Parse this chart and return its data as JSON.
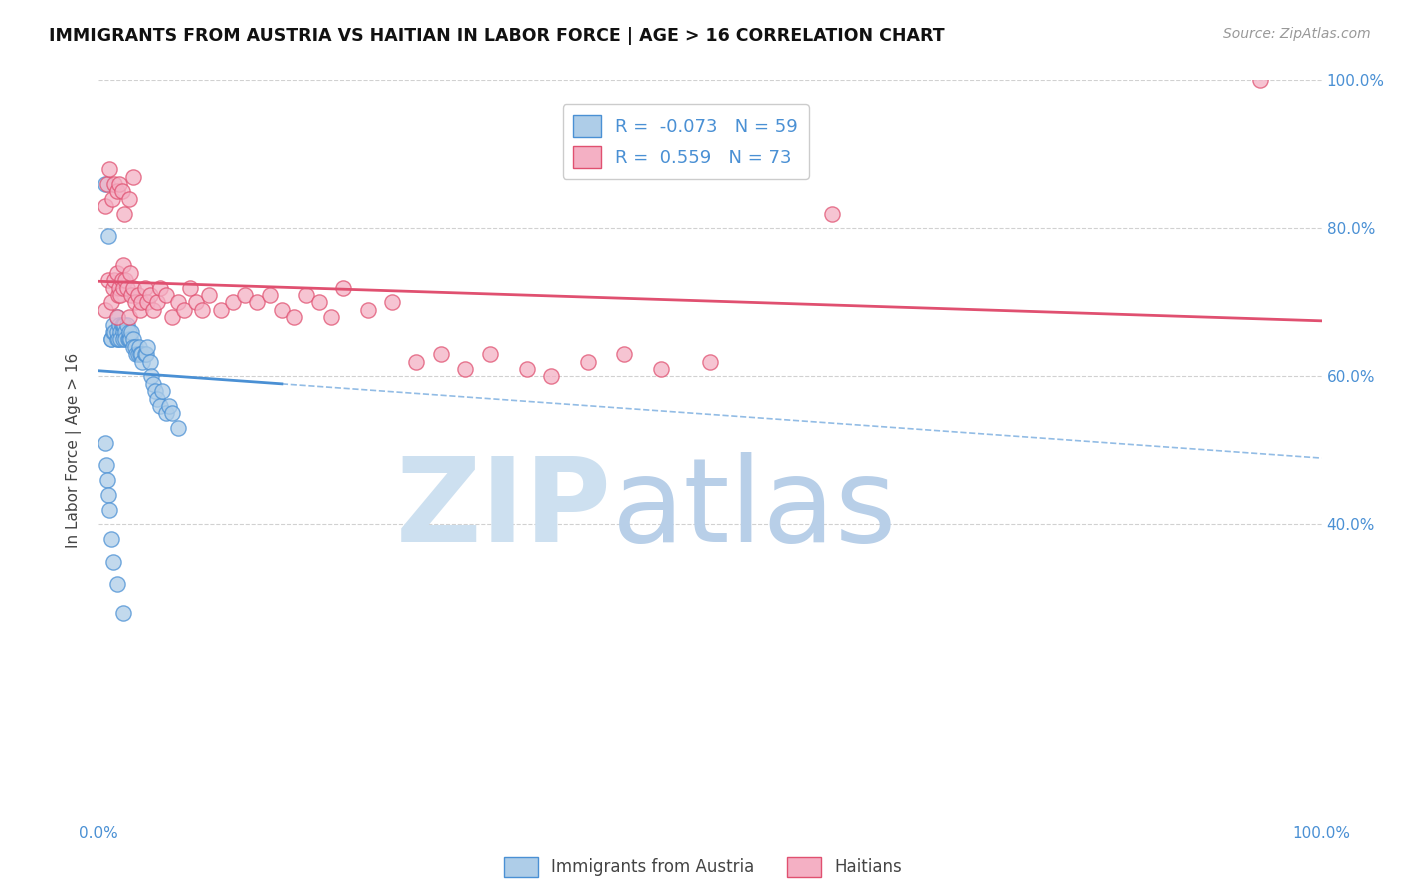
{
  "title": "IMMIGRANTS FROM AUSTRIA VS HAITIAN IN LABOR FORCE | AGE > 16 CORRELATION CHART",
  "source_text": "Source: ZipAtlas.com",
  "ylabel": "In Labor Force | Age > 16",
  "xlim": [
    0.0,
    1.0
  ],
  "ylim": [
    0.0,
    1.0
  ],
  "austria_color": "#aecde8",
  "haiti_color": "#f4b0c4",
  "austria_line_color": "#4a90d4",
  "haiti_line_color": "#e05070",
  "austria_R": -0.073,
  "austria_N": 59,
  "haiti_R": 0.559,
  "haiti_N": 73,
  "background_color": "#ffffff",
  "grid_color": "#cccccc",
  "austria_scatter_x": [
    0.005,
    0.008,
    0.01,
    0.01,
    0.012,
    0.012,
    0.013,
    0.015,
    0.015,
    0.015,
    0.016,
    0.017,
    0.018,
    0.018,
    0.019,
    0.02,
    0.02,
    0.02,
    0.021,
    0.022,
    0.022,
    0.023,
    0.024,
    0.025,
    0.025,
    0.026,
    0.027,
    0.028,
    0.028,
    0.03,
    0.031,
    0.032,
    0.033,
    0.034,
    0.035,
    0.036,
    0.038,
    0.039,
    0.04,
    0.042,
    0.043,
    0.045,
    0.046,
    0.048,
    0.05,
    0.052,
    0.055,
    0.058,
    0.06,
    0.065,
    0.005,
    0.006,
    0.007,
    0.008,
    0.009,
    0.01,
    0.012,
    0.015,
    0.02
  ],
  "austria_scatter_y": [
    0.86,
    0.79,
    0.65,
    0.65,
    0.66,
    0.67,
    0.66,
    0.65,
    0.68,
    0.66,
    0.65,
    0.67,
    0.66,
    0.65,
    0.67,
    0.66,
    0.65,
    0.67,
    0.67,
    0.66,
    0.65,
    0.67,
    0.65,
    0.65,
    0.66,
    0.65,
    0.66,
    0.65,
    0.64,
    0.64,
    0.63,
    0.63,
    0.64,
    0.63,
    0.63,
    0.62,
    0.63,
    0.63,
    0.64,
    0.62,
    0.6,
    0.59,
    0.58,
    0.57,
    0.56,
    0.58,
    0.55,
    0.56,
    0.55,
    0.53,
    0.51,
    0.48,
    0.46,
    0.44,
    0.42,
    0.38,
    0.35,
    0.32,
    0.28
  ],
  "haiti_scatter_x": [
    0.005,
    0.008,
    0.01,
    0.012,
    0.013,
    0.015,
    0.015,
    0.016,
    0.017,
    0.018,
    0.019,
    0.02,
    0.02,
    0.022,
    0.023,
    0.025,
    0.026,
    0.027,
    0.028,
    0.03,
    0.032,
    0.034,
    0.035,
    0.038,
    0.04,
    0.042,
    0.045,
    0.048,
    0.05,
    0.055,
    0.06,
    0.065,
    0.07,
    0.075,
    0.08,
    0.085,
    0.09,
    0.1,
    0.11,
    0.12,
    0.13,
    0.14,
    0.15,
    0.16,
    0.17,
    0.18,
    0.19,
    0.2,
    0.22,
    0.24,
    0.26,
    0.28,
    0.3,
    0.32,
    0.35,
    0.37,
    0.4,
    0.43,
    0.46,
    0.5,
    0.005,
    0.007,
    0.009,
    0.011,
    0.013,
    0.015,
    0.017,
    0.019,
    0.021,
    0.025,
    0.028,
    0.6,
    0.95
  ],
  "haiti_scatter_y": [
    0.69,
    0.73,
    0.7,
    0.72,
    0.73,
    0.74,
    0.68,
    0.71,
    0.72,
    0.71,
    0.73,
    0.75,
    0.72,
    0.73,
    0.72,
    0.68,
    0.74,
    0.71,
    0.72,
    0.7,
    0.71,
    0.69,
    0.7,
    0.72,
    0.7,
    0.71,
    0.69,
    0.7,
    0.72,
    0.71,
    0.68,
    0.7,
    0.69,
    0.72,
    0.7,
    0.69,
    0.71,
    0.69,
    0.7,
    0.71,
    0.7,
    0.71,
    0.69,
    0.68,
    0.71,
    0.7,
    0.68,
    0.72,
    0.69,
    0.7,
    0.62,
    0.63,
    0.61,
    0.63,
    0.61,
    0.6,
    0.62,
    0.63,
    0.61,
    0.62,
    0.83,
    0.86,
    0.88,
    0.84,
    0.86,
    0.85,
    0.86,
    0.85,
    0.82,
    0.84,
    0.87,
    0.82,
    1.0
  ],
  "right_ytick_positions": [
    0.4,
    0.6,
    0.8,
    1.0
  ],
  "right_ytick_labels": [
    "40.0%",
    "60.0%",
    "80.0%",
    "100.0%"
  ]
}
